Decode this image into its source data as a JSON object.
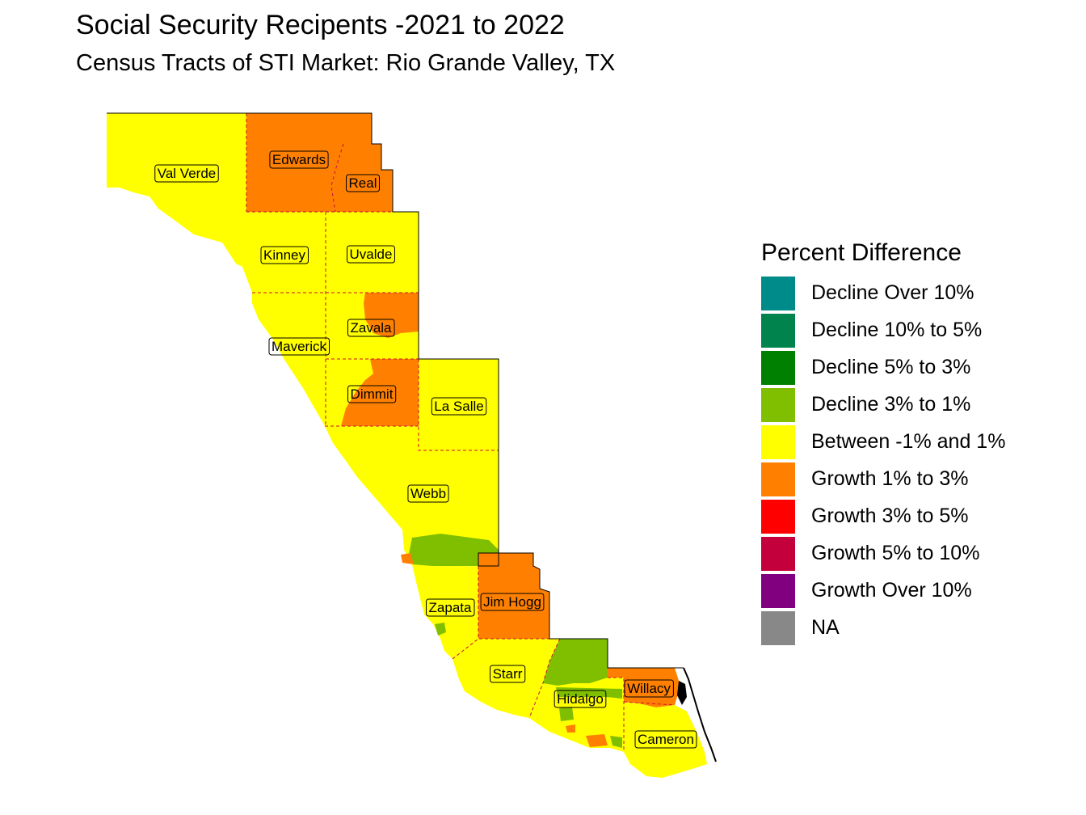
{
  "title": "Social Security Recipents -2021 to 2022",
  "subtitle": "Census Tracts of STI Market: Rio Grande Valley, TX",
  "colors": {
    "decline_over_10": "#008B8B",
    "decline_10_5": "#00834C",
    "decline_5_3": "#008000",
    "decline_3_1": "#80BF00",
    "between": "#FFFF00",
    "growth_1_3": "#FF8000",
    "growth_3_5": "#FF0000",
    "growth_5_10": "#C4003C",
    "growth_over_10": "#800080",
    "na": "#888888",
    "boundary": "#CC1133"
  },
  "legend": {
    "title": "Percent Difference",
    "items": [
      {
        "label": "Decline Over 10%",
        "color": "#008B8B"
      },
      {
        "label": "Decline 10% to 5%",
        "color": "#00834C"
      },
      {
        "label": "Decline 5% to 3%",
        "color": "#008000"
      },
      {
        "label": "Decline 3% to 1%",
        "color": "#80BF00"
      },
      {
        "label": "Between -1% and 1%",
        "color": "#FFFF00"
      },
      {
        "label": "Growth 1% to 3%",
        "color": "#FF8000"
      },
      {
        "label": "Growth 3% to 5%",
        "color": "#FF0000"
      },
      {
        "label": "Growth 5% to 10%",
        "color": "#C4003C"
      },
      {
        "label": "Growth Over 10%",
        "color": "#800080"
      },
      {
        "label": "NA",
        "color": "#888888"
      }
    ]
  },
  "counties": [
    {
      "name": "Val Verde",
      "category": "Between -1% and 1%"
    },
    {
      "name": "Edwards",
      "category": "Growth 1% to 3%"
    },
    {
      "name": "Real",
      "category": "Growth 1% to 3%"
    },
    {
      "name": "Kinney",
      "category": "Between -1% and 1%"
    },
    {
      "name": "Uvalde",
      "category": "Between -1% and 1%"
    },
    {
      "name": "Zavala",
      "category": "Between -1% and 1%"
    },
    {
      "name": "Maverick",
      "category": "Between -1% and 1%"
    },
    {
      "name": "Dimmit",
      "category": "Growth 1% to 3%"
    },
    {
      "name": "La Salle",
      "category": "Between -1% and 1%"
    },
    {
      "name": "Webb",
      "category": "Between -1% and 1%"
    },
    {
      "name": "Zapata",
      "category": "Between -1% and 1%"
    },
    {
      "name": "Jim Hogg",
      "category": "Growth 1% to 3%"
    },
    {
      "name": "Starr",
      "category": "Between -1% and 1%"
    },
    {
      "name": "Hidalgo",
      "category": "Between -1% and 1%"
    },
    {
      "name": "Willacy",
      "category": "Growth 1% to 3%"
    },
    {
      "name": "Cameron",
      "category": "Between -1% and 1%"
    }
  ]
}
